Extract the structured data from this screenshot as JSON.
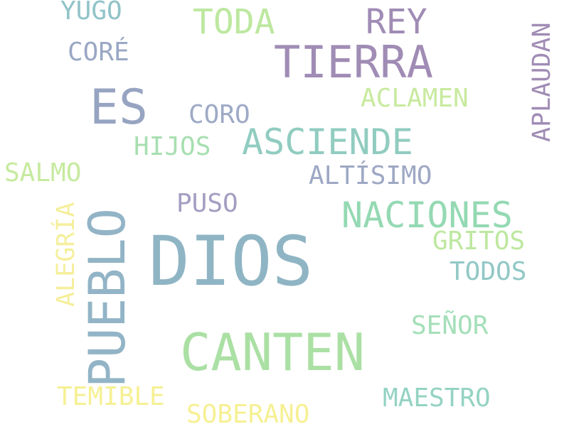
{
  "word_cloud": {
    "background": "#ffffff",
    "words": {
      "dios": {
        "text": "DIOS",
        "color": "#8fb5c4"
      },
      "pueblo": {
        "text": "PUEBLO",
        "color": "#92b4c6"
      },
      "canten": {
        "text": "CANTEN",
        "color": "#abe0a4"
      },
      "tierra": {
        "text": "TIERRA",
        "color": "#a08cb5"
      },
      "es": {
        "text": "ES",
        "color": "#97a4c1"
      },
      "naciones": {
        "text": "NACIONES",
        "color": "#94d9b3"
      },
      "asciende": {
        "text": "ASCIENDE",
        "color": "#91ccc0"
      },
      "rey": {
        "text": "REY",
        "color": "#a08cb5"
      },
      "toda": {
        "text": "TODA",
        "color": "#bde8a0"
      },
      "aplaudan": {
        "text": "APLAUDAN",
        "color": "#a08cb5"
      },
      "alegria": {
        "text": "ALEGRÍA",
        "color": "#f5ef9c"
      },
      "aclamen": {
        "text": "ACLAMEN",
        "color": "#c8ea9e"
      },
      "coro": {
        "text": "CORO",
        "color": "#9eaac6"
      },
      "hijos": {
        "text": "HIJOS",
        "color": "#a7dfb0"
      },
      "salmo": {
        "text": "SALMO",
        "color": "#c6ea9f"
      },
      "altisimo": {
        "text": "ALTÍSIMO",
        "color": "#9ea8c4"
      },
      "puso": {
        "text": "PUSO",
        "color": "#a39ec1"
      },
      "gritos": {
        "text": "GRITOS",
        "color": "#bde8a0"
      },
      "todos": {
        "text": "TODOS",
        "color": "#91c8c6"
      },
      "senor": {
        "text": "SEÑOR",
        "color": "#a4dfb9"
      },
      "maestro": {
        "text": "MAESTRO",
        "color": "#94d3c3"
      },
      "temible": {
        "text": "TEMIBLE",
        "color": "#f6f093"
      },
      "soberano": {
        "text": "SOBERANO",
        "color": "#f6f093"
      },
      "yugo": {
        "text": "YUGO",
        "color": "#91c3c8"
      },
      "core": {
        "text": "CORÉ",
        "color": "#9aa7c4"
      }
    }
  }
}
